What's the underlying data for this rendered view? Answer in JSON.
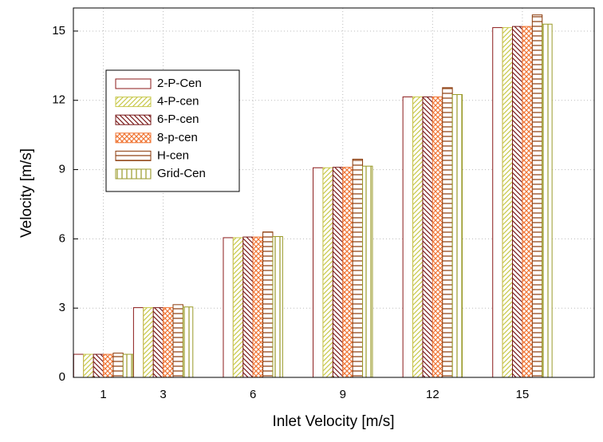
{
  "chart_data": {
    "type": "bar",
    "x_label": "Inlet Velocity [m/s]",
    "y_label": "Velocity [m/s]",
    "x": [
      1,
      3,
      6,
      9,
      12,
      15
    ],
    "xlim": [
      0,
      17.4
    ],
    "xticks": [
      1,
      3,
      6,
      9,
      12,
      15
    ],
    "ylim": [
      0,
      16
    ],
    "yticks": [
      0,
      3,
      6,
      9,
      12,
      15
    ],
    "grid": true,
    "legend": "upper-left",
    "series": [
      {
        "name": "2-P-Cen",
        "color": "#8b1a1a",
        "hatch": "none",
        "values": [
          1.0,
          3.02,
          6.05,
          9.08,
          12.15,
          15.15
        ]
      },
      {
        "name": "4-P-cen",
        "color": "#c8c84a",
        "hatch": "slash",
        "values": [
          1.0,
          3.02,
          6.05,
          9.08,
          12.15,
          15.15
        ]
      },
      {
        "name": "6-P-cen",
        "color": "#7a1a1a",
        "hatch": "backslash",
        "values": [
          1.0,
          3.02,
          6.08,
          9.1,
          12.15,
          15.2
        ]
      },
      {
        "name": "8-p-cen",
        "color": "#f07838",
        "hatch": "cross",
        "values": [
          1.0,
          3.02,
          6.08,
          9.1,
          12.15,
          15.2
        ]
      },
      {
        "name": "H-cen",
        "color": "#8b3a0a",
        "hatch": "horizontal",
        "values": [
          1.05,
          3.15,
          6.3,
          9.45,
          12.55,
          15.7
        ]
      },
      {
        "name": "Grid-Cen",
        "color": "#9a9a28",
        "hatch": "vertical",
        "values": [
          1.0,
          3.05,
          6.1,
          9.15,
          12.25,
          15.3
        ]
      }
    ]
  }
}
